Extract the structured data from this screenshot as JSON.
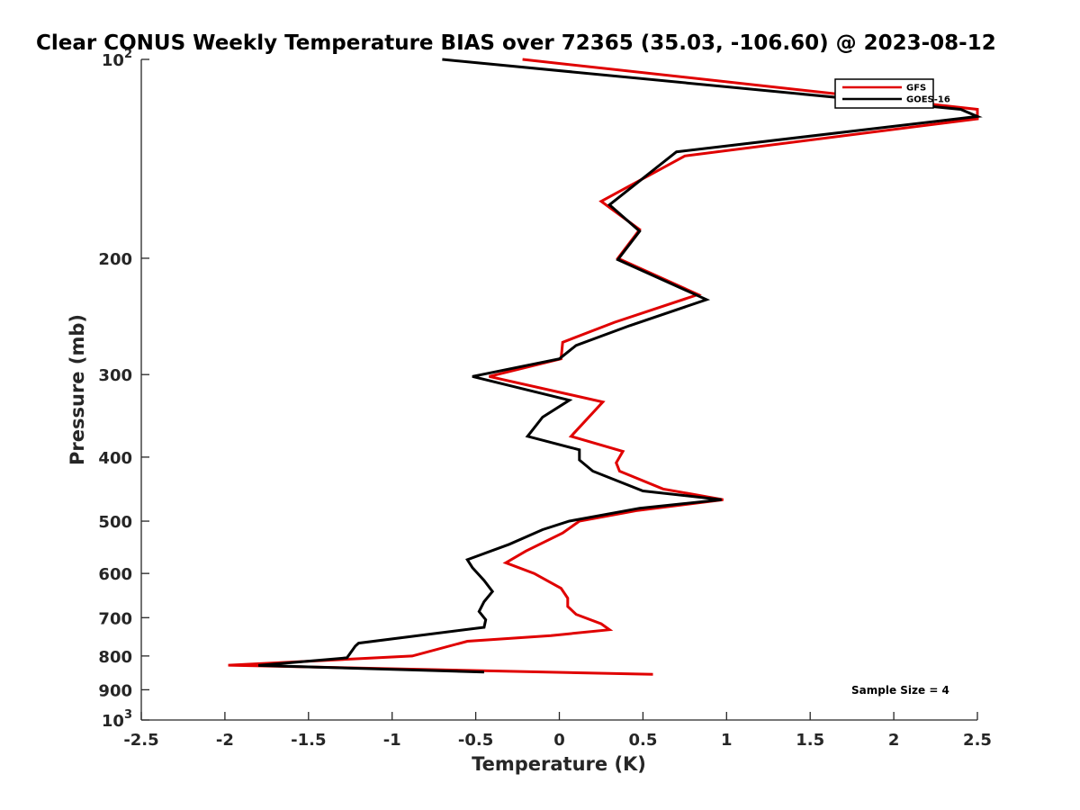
{
  "chart_data": {
    "type": "line",
    "title": "Clear CONUS Weekly Temperature BIAS over 72365 (35.03, -106.60) @ 2023-08-12",
    "xlabel": "Temperature (K)",
    "ylabel": "Pressure (mb)",
    "xlim": [
      -2.5,
      2.5
    ],
    "ylim": [
      100,
      1000
    ],
    "y_scale": "log",
    "y_reversed": true,
    "grid": false,
    "x_ticks": [
      -2.5,
      -2,
      -1.5,
      -1,
      -0.5,
      0,
      0.5,
      1,
      1.5,
      2,
      2.5
    ],
    "x_tick_labels": [
      "-2.5",
      "-2",
      "-1.5",
      "-1",
      "-0.5",
      "0",
      "0.5",
      "1",
      "1.5",
      "2",
      "2.5"
    ],
    "y_ticks": [
      100,
      200,
      300,
      400,
      500,
      600,
      700,
      800,
      900,
      1000
    ],
    "y_tick_labels": [
      {
        "base": "10",
        "exp": "2"
      },
      {
        "base": "200",
        "exp": ""
      },
      {
        "base": "300",
        "exp": ""
      },
      {
        "base": "400",
        "exp": ""
      },
      {
        "base": "500",
        "exp": ""
      },
      {
        "base": "600",
        "exp": ""
      },
      {
        "base": "700",
        "exp": ""
      },
      {
        "base": "800",
        "exp": ""
      },
      {
        "base": "900",
        "exp": ""
      },
      {
        "base": "10",
        "exp": "3"
      }
    ],
    "legend_position": "top-right",
    "annotation": "Sample Size = 4",
    "series": [
      {
        "name": "GFS",
        "color": "#e00000",
        "points": [
          [
            -0.22,
            100
          ],
          [
            2.5,
            119
          ],
          [
            2.5,
            123
          ],
          [
            0.75,
            140
          ],
          [
            0.25,
            164
          ],
          [
            0.48,
            181
          ],
          [
            0.35,
            200
          ],
          [
            0.83,
            227
          ],
          [
            0.33,
            250
          ],
          [
            0.02,
            268
          ],
          [
            0.01,
            284
          ],
          [
            -0.42,
            302
          ],
          [
            0.26,
            330
          ],
          [
            0.07,
            372
          ],
          [
            0.38,
            392
          ],
          [
            0.34,
            408
          ],
          [
            0.36,
            420
          ],
          [
            0.62,
            447
          ],
          [
            0.98,
            464
          ],
          [
            0.46,
            482
          ],
          [
            0.12,
            500
          ],
          [
            0.02,
            521
          ],
          [
            -0.2,
            555
          ],
          [
            -0.32,
            578
          ],
          [
            -0.15,
            600
          ],
          [
            0.01,
            632
          ],
          [
            0.05,
            654
          ],
          [
            0.05,
            673
          ],
          [
            0.1,
            692
          ],
          [
            0.25,
            715
          ],
          [
            0.3,
            730
          ],
          [
            -0.05,
            745
          ],
          [
            -0.55,
            760
          ],
          [
            -0.88,
            800
          ],
          [
            -1.98,
            826
          ],
          [
            0.56,
            853
          ]
        ]
      },
      {
        "name": "GOES-16",
        "color": "#000000",
        "points": [
          [
            -0.7,
            100
          ],
          [
            2.4,
            119
          ],
          [
            2.5,
            122
          ],
          [
            0.7,
            138
          ],
          [
            0.3,
            166
          ],
          [
            0.48,
            182
          ],
          [
            0.35,
            201
          ],
          [
            0.88,
            231
          ],
          [
            0.42,
            253
          ],
          [
            0.1,
            271
          ],
          [
            0.0,
            284
          ],
          [
            -0.52,
            302
          ],
          [
            0.06,
            328
          ],
          [
            -0.1,
            348
          ],
          [
            -0.19,
            372
          ],
          [
            0.12,
            390
          ],
          [
            0.12,
            404
          ],
          [
            0.2,
            420
          ],
          [
            0.5,
            450
          ],
          [
            0.97,
            464
          ],
          [
            0.48,
            478
          ],
          [
            0.06,
            500
          ],
          [
            -0.1,
            515
          ],
          [
            -0.3,
            542
          ],
          [
            -0.55,
            572
          ],
          [
            -0.52,
            588
          ],
          [
            -0.45,
            615
          ],
          [
            -0.4,
            639
          ],
          [
            -0.45,
            662
          ],
          [
            -0.48,
            685
          ],
          [
            -0.44,
            705
          ],
          [
            -0.45,
            724
          ],
          [
            -1.2,
            765
          ],
          [
            -1.22,
            773
          ],
          [
            -1.27,
            805
          ],
          [
            -1.8,
            827
          ],
          [
            -0.45,
            846
          ]
        ]
      }
    ]
  }
}
